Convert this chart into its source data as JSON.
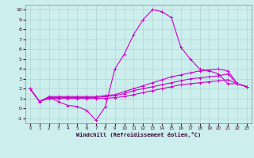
{
  "xlabel": "Windchill (Refroidissement éolien,°C)",
  "xlim": [
    -0.5,
    23.5
  ],
  "ylim": [
    -1.5,
    10.5
  ],
  "yticks": [
    -1,
    0,
    1,
    2,
    3,
    4,
    5,
    6,
    7,
    8,
    9,
    10
  ],
  "xticks": [
    0,
    1,
    2,
    3,
    4,
    5,
    6,
    7,
    8,
    9,
    10,
    11,
    12,
    13,
    14,
    15,
    16,
    17,
    18,
    19,
    20,
    21,
    22,
    23
  ],
  "background_color": "#cceeed",
  "grid_color": "#aacccc",
  "line_color": "#cc00cc",
  "line1_x": [
    0,
    1,
    2,
    3,
    4,
    5,
    6,
    7,
    8,
    9,
    10,
    11,
    12,
    13,
    14,
    15,
    16,
    17,
    18,
    19,
    20,
    21,
    22,
    23
  ],
  "line1_y": [
    2.0,
    0.7,
    1.1,
    0.7,
    0.3,
    0.2,
    -0.2,
    -1.2,
    0.2,
    4.0,
    5.5,
    7.5,
    9.0,
    10.0,
    9.8,
    9.2,
    6.2,
    5.0,
    4.0,
    3.8,
    3.5,
    2.5,
    2.5,
    2.2
  ],
  "line2_x": [
    0,
    1,
    2,
    3,
    4,
    5,
    6,
    7,
    8,
    9,
    10,
    11,
    12,
    13,
    14,
    15,
    16,
    17,
    18,
    19,
    20,
    21,
    22,
    23
  ],
  "line2_y": [
    2.0,
    0.7,
    1.1,
    1.1,
    1.1,
    1.1,
    1.1,
    1.1,
    1.2,
    1.3,
    1.5,
    1.8,
    2.0,
    2.2,
    2.4,
    2.6,
    2.8,
    3.0,
    3.1,
    3.2,
    3.3,
    3.5,
    2.5,
    2.2
  ],
  "line3_x": [
    0,
    1,
    2,
    3,
    4,
    5,
    6,
    7,
    8,
    9,
    10,
    11,
    12,
    13,
    14,
    15,
    16,
    17,
    18,
    19,
    20,
    21,
    22,
    23
  ],
  "line3_y": [
    2.0,
    0.7,
    1.2,
    1.2,
    1.2,
    1.2,
    1.2,
    1.2,
    1.3,
    1.4,
    1.7,
    2.0,
    2.3,
    2.6,
    2.9,
    3.2,
    3.4,
    3.6,
    3.8,
    3.9,
    4.0,
    3.8,
    2.5,
    2.2
  ],
  "line4_x": [
    0,
    1,
    2,
    3,
    4,
    5,
    6,
    7,
    8,
    9,
    10,
    11,
    12,
    13,
    14,
    15,
    16,
    17,
    18,
    19,
    20,
    21,
    22,
    23
  ],
  "line4_y": [
    2.0,
    0.7,
    1.0,
    1.0,
    1.0,
    1.0,
    1.0,
    1.0,
    1.0,
    1.1,
    1.2,
    1.4,
    1.6,
    1.8,
    2.0,
    2.2,
    2.4,
    2.5,
    2.6,
    2.7,
    2.8,
    2.9,
    2.5,
    2.2
  ]
}
